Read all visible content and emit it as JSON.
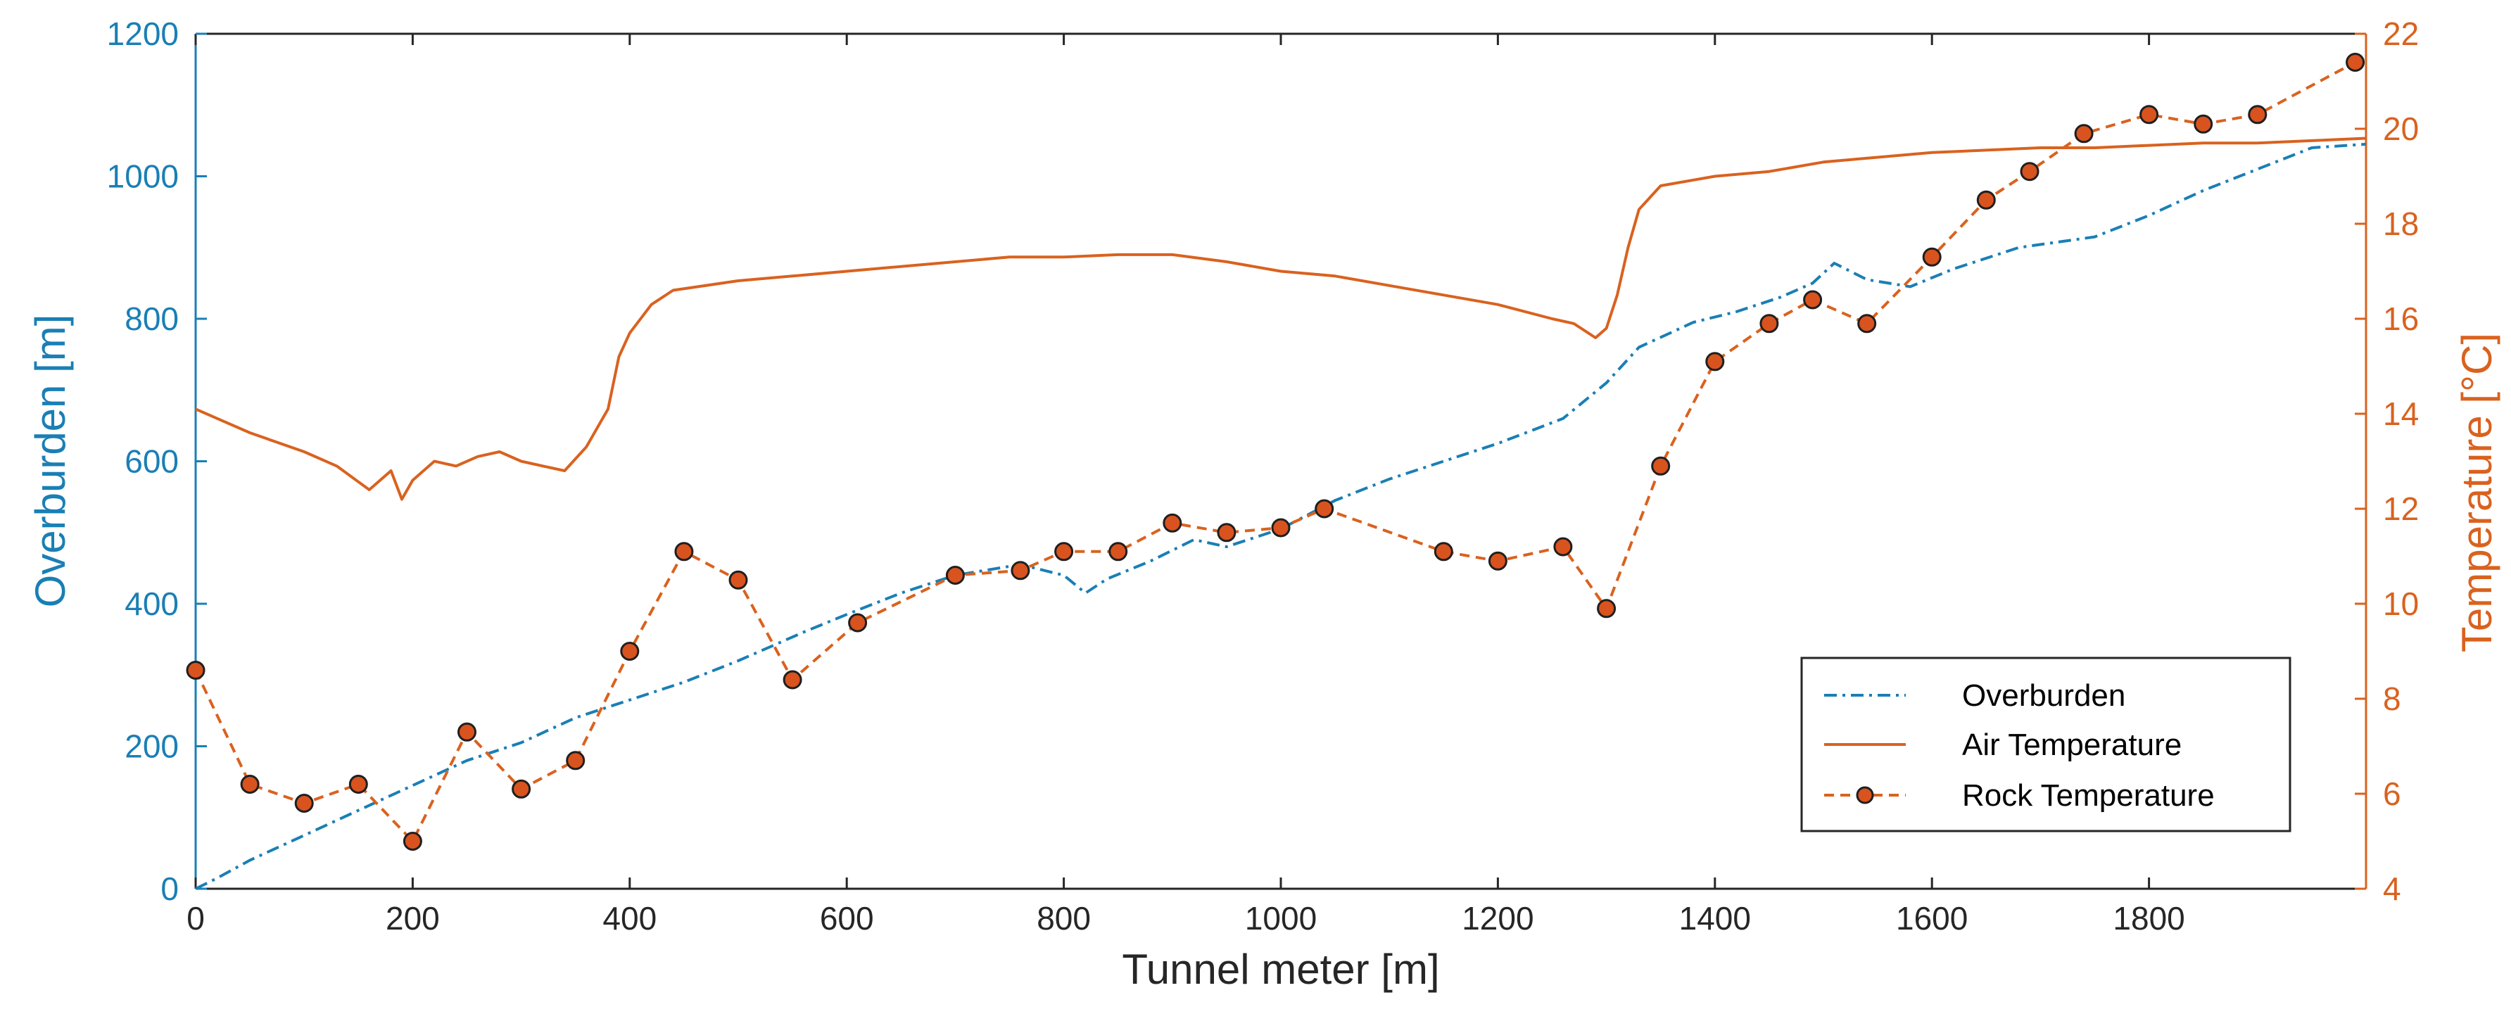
{
  "chart_data": {
    "type": "line",
    "title": "",
    "xlabel": "Tunnel meter [m]",
    "ylabel_left": "Overburden [m]",
    "ylabel_right": "Temperature [°C]",
    "xlim": [
      0,
      2000
    ],
    "ylim_left": [
      0,
      1200
    ],
    "ylim_right": [
      4,
      22
    ],
    "xticks": [
      0,
      200,
      400,
      600,
      800,
      1000,
      1200,
      1400,
      1600,
      1800
    ],
    "yticks_left": [
      0,
      200,
      400,
      600,
      800,
      1000,
      1200
    ],
    "yticks_right": [
      4,
      6,
      8,
      10,
      12,
      14,
      16,
      18,
      20,
      22
    ],
    "grid": false,
    "legend_position": "bottom-right",
    "colors": {
      "left_axis": "#1a7fb5",
      "right_axis": "#d9621f",
      "overburden": "#1a7fb5",
      "air": "#d9621f",
      "rock": "#d9621f",
      "marker_fill": "#d9531e"
    },
    "series": [
      {
        "name": "Overburden",
        "axis": "left",
        "style": "dash-dot",
        "x": [
          0,
          20,
          50,
          100,
          150,
          200,
          250,
          300,
          350,
          400,
          450,
          500,
          530,
          560,
          600,
          650,
          700,
          760,
          800,
          820,
          840,
          880,
          920,
          950,
          1000,
          1050,
          1100,
          1150,
          1200,
          1260,
          1300,
          1330,
          1380,
          1420,
          1460,
          1490,
          1510,
          1540,
          1580,
          1620,
          1680,
          1750,
          1800,
          1850,
          1900,
          1950,
          2000
        ],
        "y": [
          0,
          15,
          40,
          75,
          110,
          145,
          180,
          205,
          240,
          265,
          290,
          320,
          340,
          360,
          385,
          415,
          440,
          455,
          440,
          415,
          435,
          460,
          490,
          480,
          505,
          545,
          575,
          600,
          625,
          660,
          710,
          760,
          795,
          810,
          830,
          850,
          878,
          855,
          845,
          870,
          900,
          915,
          945,
          980,
          1010,
          1040,
          1045
        ]
      },
      {
        "name": "Air Temperature",
        "axis": "right",
        "style": "solid",
        "x": [
          0,
          20,
          50,
          100,
          130,
          160,
          180,
          190,
          200,
          220,
          240,
          260,
          280,
          300,
          320,
          340,
          360,
          380,
          390,
          400,
          420,
          440,
          500,
          550,
          600,
          650,
          700,
          750,
          800,
          850,
          900,
          950,
          1000,
          1050,
          1100,
          1150,
          1200,
          1250,
          1270,
          1290,
          1300,
          1310,
          1320,
          1330,
          1350,
          1400,
          1450,
          1500,
          1550,
          1600,
          1650,
          1700,
          1750,
          1800,
          1850,
          1900,
          1950,
          2000
        ],
        "y": [
          14.1,
          13.9,
          13.6,
          13.2,
          12.9,
          12.4,
          12.8,
          12.2,
          12.6,
          13.0,
          12.9,
          13.1,
          13.2,
          13.0,
          12.9,
          12.8,
          13.3,
          14.1,
          15.2,
          15.7,
          16.3,
          16.6,
          16.8,
          16.9,
          17.0,
          17.1,
          17.2,
          17.3,
          17.3,
          17.35,
          17.35,
          17.2,
          17.0,
          16.9,
          16.7,
          16.5,
          16.3,
          16.0,
          15.9,
          15.6,
          15.8,
          16.5,
          17.5,
          18.3,
          18.8,
          19.0,
          19.1,
          19.3,
          19.4,
          19.5,
          19.55,
          19.6,
          19.6,
          19.65,
          19.7,
          19.7,
          19.75,
          19.8
        ]
      },
      {
        "name": "Rock Temperature",
        "axis": "right",
        "style": "dashed-markers",
        "x": [
          0,
          50,
          100,
          150,
          200,
          250,
          300,
          350,
          400,
          450,
          500,
          550,
          610,
          700,
          760,
          800,
          850,
          900,
          950,
          1000,
          1040,
          1150,
          1200,
          1260,
          1300,
          1350,
          1400,
          1450,
          1490,
          1540,
          1600,
          1650,
          1690,
          1740,
          1800,
          1850,
          1900,
          1990
        ],
        "y": [
          8.6,
          6.2,
          5.8,
          6.2,
          5.0,
          7.3,
          6.1,
          6.7,
          9.0,
          11.1,
          10.5,
          8.4,
          9.6,
          10.6,
          10.7,
          11.1,
          11.1,
          11.7,
          11.5,
          11.6,
          12.0,
          11.1,
          10.9,
          11.2,
          9.9,
          12.9,
          15.1,
          15.9,
          16.4,
          15.9,
          17.3,
          18.5,
          19.1,
          19.9,
          20.3,
          20.1,
          20.3,
          21.4
        ]
      }
    ]
  },
  "legend": {
    "overburden": "Overburden",
    "air": "Air Temperature",
    "rock": "Rock Temperature"
  }
}
